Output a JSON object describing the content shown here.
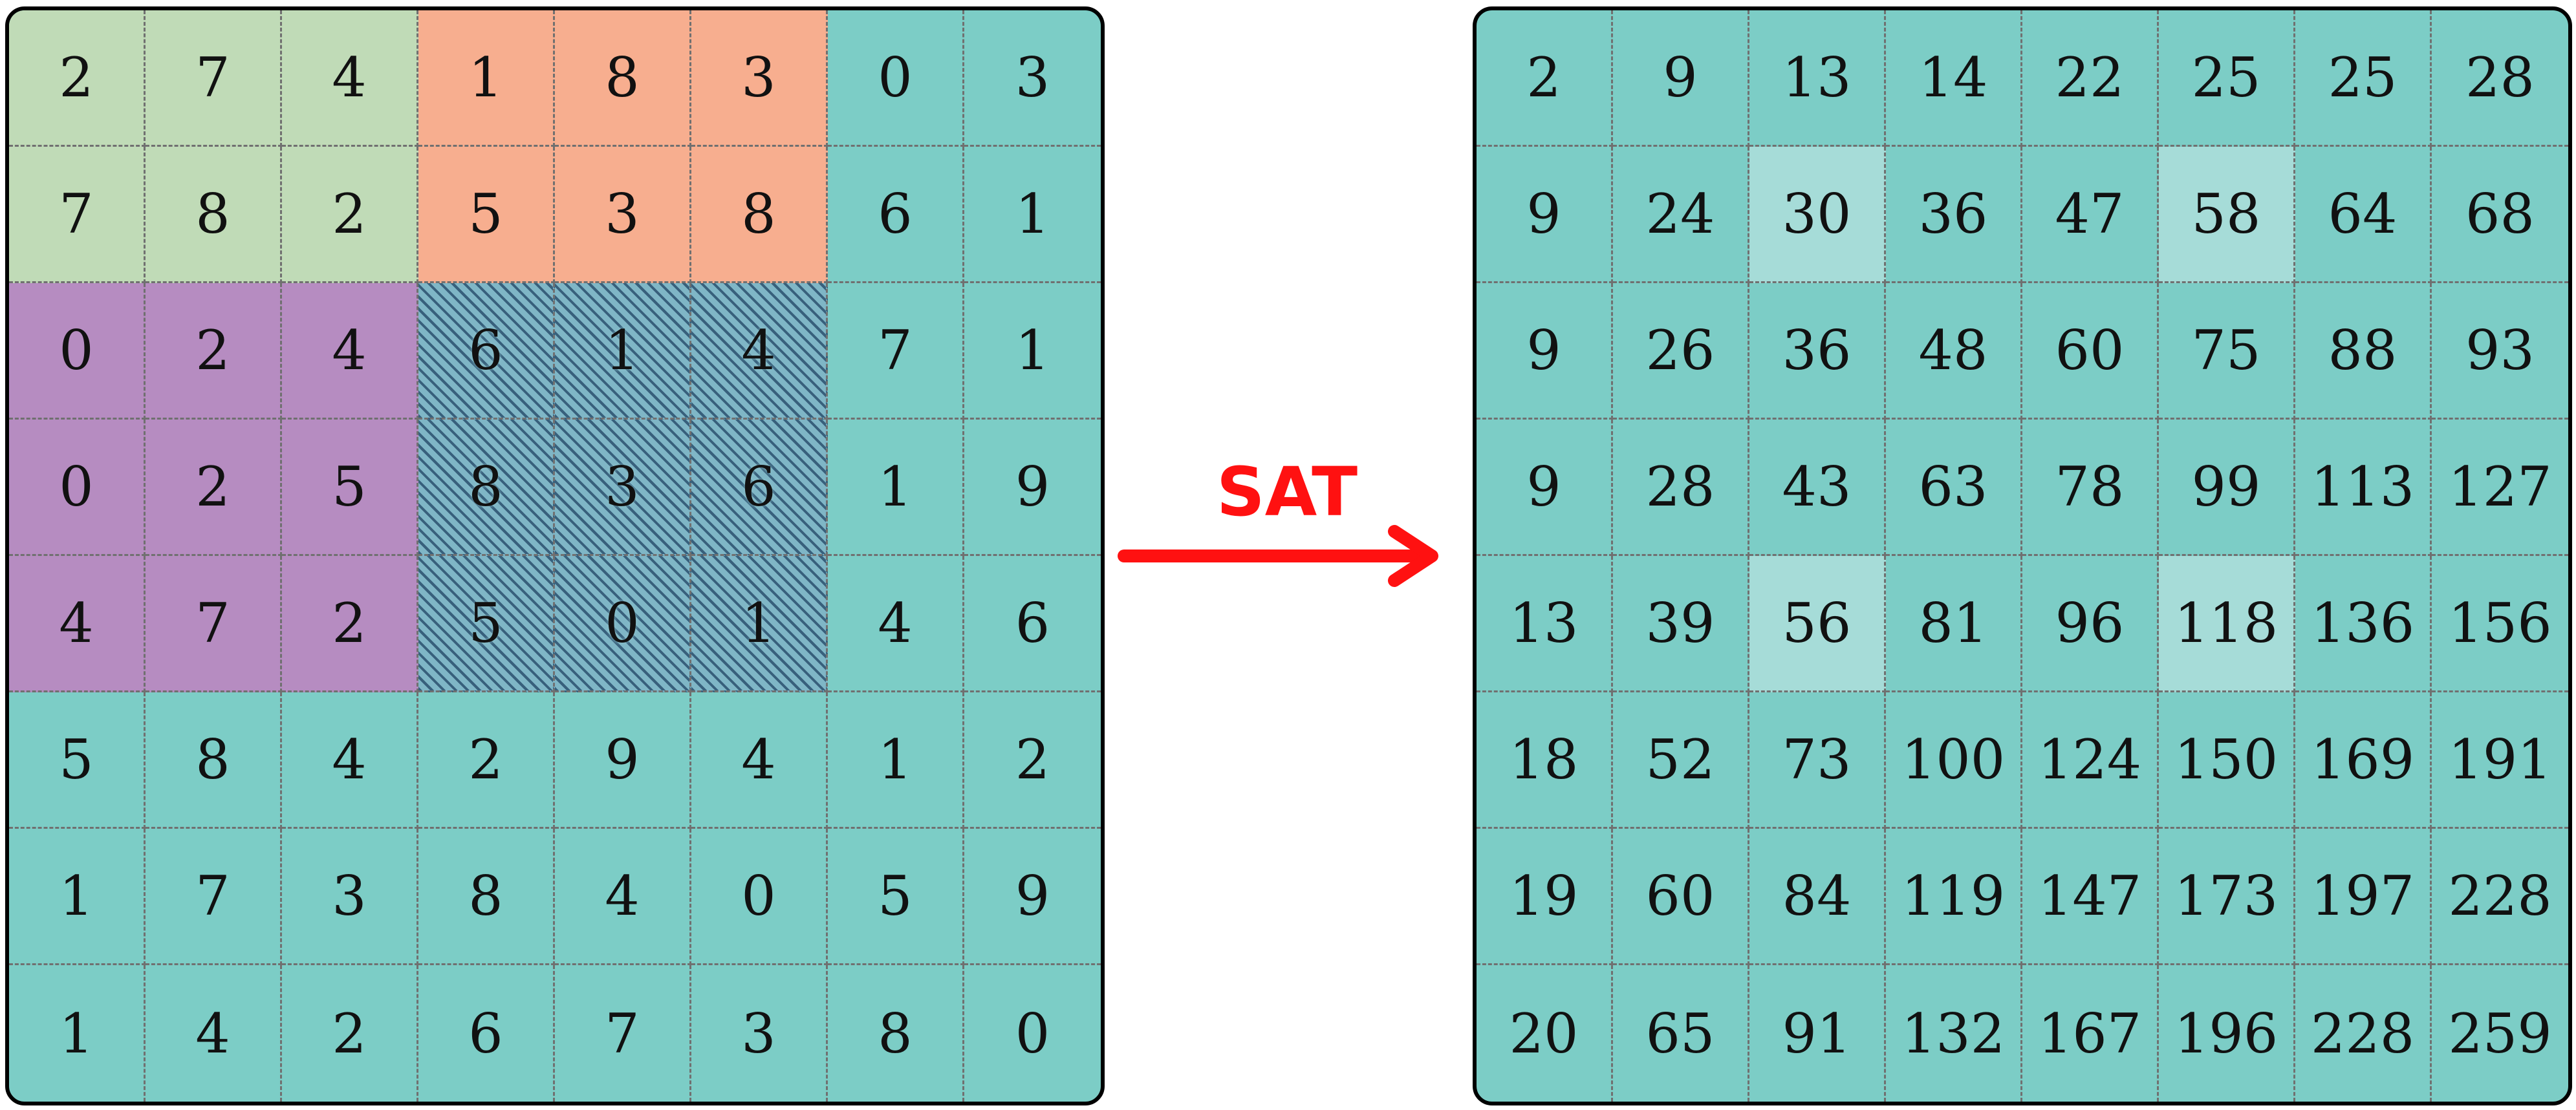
{
  "input_grid": {
    "rows": [
      [
        "2",
        "7",
        "4",
        "1",
        "8",
        "3",
        "0",
        "3"
      ],
      [
        "7",
        "8",
        "2",
        "5",
        "3",
        "8",
        "6",
        "1"
      ],
      [
        "0",
        "2",
        "4",
        "6",
        "1",
        "4",
        "7",
        "1"
      ],
      [
        "0",
        "2",
        "5",
        "8",
        "3",
        "6",
        "1",
        "9"
      ],
      [
        "4",
        "7",
        "2",
        "5",
        "0",
        "1",
        "4",
        "6"
      ],
      [
        "5",
        "8",
        "4",
        "2",
        "9",
        "4",
        "1",
        "2"
      ],
      [
        "1",
        "7",
        "3",
        "8",
        "4",
        "0",
        "5",
        "9"
      ],
      [
        "1",
        "4",
        "2",
        "6",
        "7",
        "3",
        "8",
        "0"
      ]
    ],
    "regions": [
      {
        "name": "green",
        "rows": [
          0,
          1
        ],
        "cols": [
          0,
          2
        ],
        "color": "#c0dbb7"
      },
      {
        "name": "orange",
        "rows": [
          0,
          1
        ],
        "cols": [
          3,
          5
        ],
        "color": "#f7ae8f"
      },
      {
        "name": "purple",
        "rows": [
          2,
          4
        ],
        "cols": [
          0,
          2
        ],
        "color": "#b68cc1"
      },
      {
        "name": "hatched",
        "rows": [
          2,
          4
        ],
        "cols": [
          3,
          5
        ],
        "color": "#7fb6c6"
      }
    ],
    "background": "#7ccdc6"
  },
  "sat_grid": {
    "rows": [
      [
        "2",
        "9",
        "13",
        "14",
        "22",
        "25",
        "25",
        "28"
      ],
      [
        "9",
        "24",
        "30",
        "36",
        "47",
        "58",
        "64",
        "68"
      ],
      [
        "9",
        "26",
        "36",
        "48",
        "60",
        "75",
        "88",
        "93"
      ],
      [
        "9",
        "28",
        "43",
        "63",
        "78",
        "99",
        "113",
        "127"
      ],
      [
        "13",
        "39",
        "56",
        "81",
        "96",
        "118",
        "136",
        "156"
      ],
      [
        "18",
        "52",
        "73",
        "100",
        "124",
        "150",
        "169",
        "191"
      ],
      [
        "19",
        "60",
        "84",
        "119",
        "147",
        "173",
        "197",
        "228"
      ],
      [
        "20",
        "65",
        "91",
        "132",
        "167",
        "196",
        "228",
        "259"
      ]
    ],
    "highlighted_cells": [
      [
        1,
        2
      ],
      [
        1,
        5
      ],
      [
        4,
        2
      ],
      [
        4,
        5
      ]
    ],
    "highlight_color": "#a6dcd8",
    "background": "#7ccdc6"
  },
  "arrow": {
    "label": "SAT",
    "color": "#ff1111"
  }
}
